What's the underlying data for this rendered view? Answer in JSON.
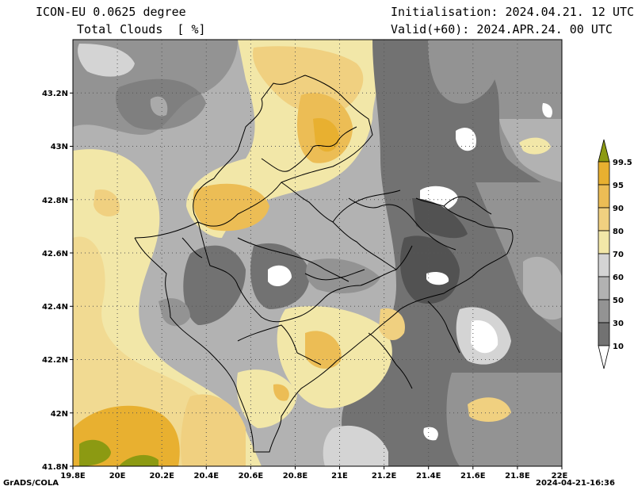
{
  "header": {
    "model": "ICON-EU 0.0625 degree",
    "variable": "Total Clouds  [ %]",
    "init": "Initialisation: 2024.04.21. 12 UTC",
    "valid": "Valid(+60): 2024.APR.24. 00 UTC"
  },
  "axes": {
    "x_ticks": [
      "19.8E",
      "20E",
      "20.2E",
      "20.4E",
      "20.6E",
      "20.8E",
      "21E",
      "21.2E",
      "21.4E",
      "21.6E",
      "21.8E",
      "22E"
    ],
    "y_ticks": [
      "43.2N",
      "43N",
      "42.8N",
      "42.6N",
      "42.4N",
      "42.2N",
      "42N",
      "41.8N"
    ],
    "x_range": [
      19.8,
      22.0
    ],
    "y_range": [
      41.8,
      43.4
    ]
  },
  "legend": {
    "levels": [
      "99.5",
      "95",
      "90",
      "80",
      "70",
      "60",
      "50",
      "30",
      "10"
    ],
    "colors": [
      "#8c9a12",
      "#e8b030",
      "#ecbd55",
      "#f0d080",
      "#f2e7a8",
      "#d4d4d4",
      "#b2b2b2",
      "#939393",
      "#727272",
      "#525252",
      "#ffffff"
    ]
  },
  "footer": {
    "left": "GrADS/COLA",
    "right": "2024-04-21-16:36"
  }
}
